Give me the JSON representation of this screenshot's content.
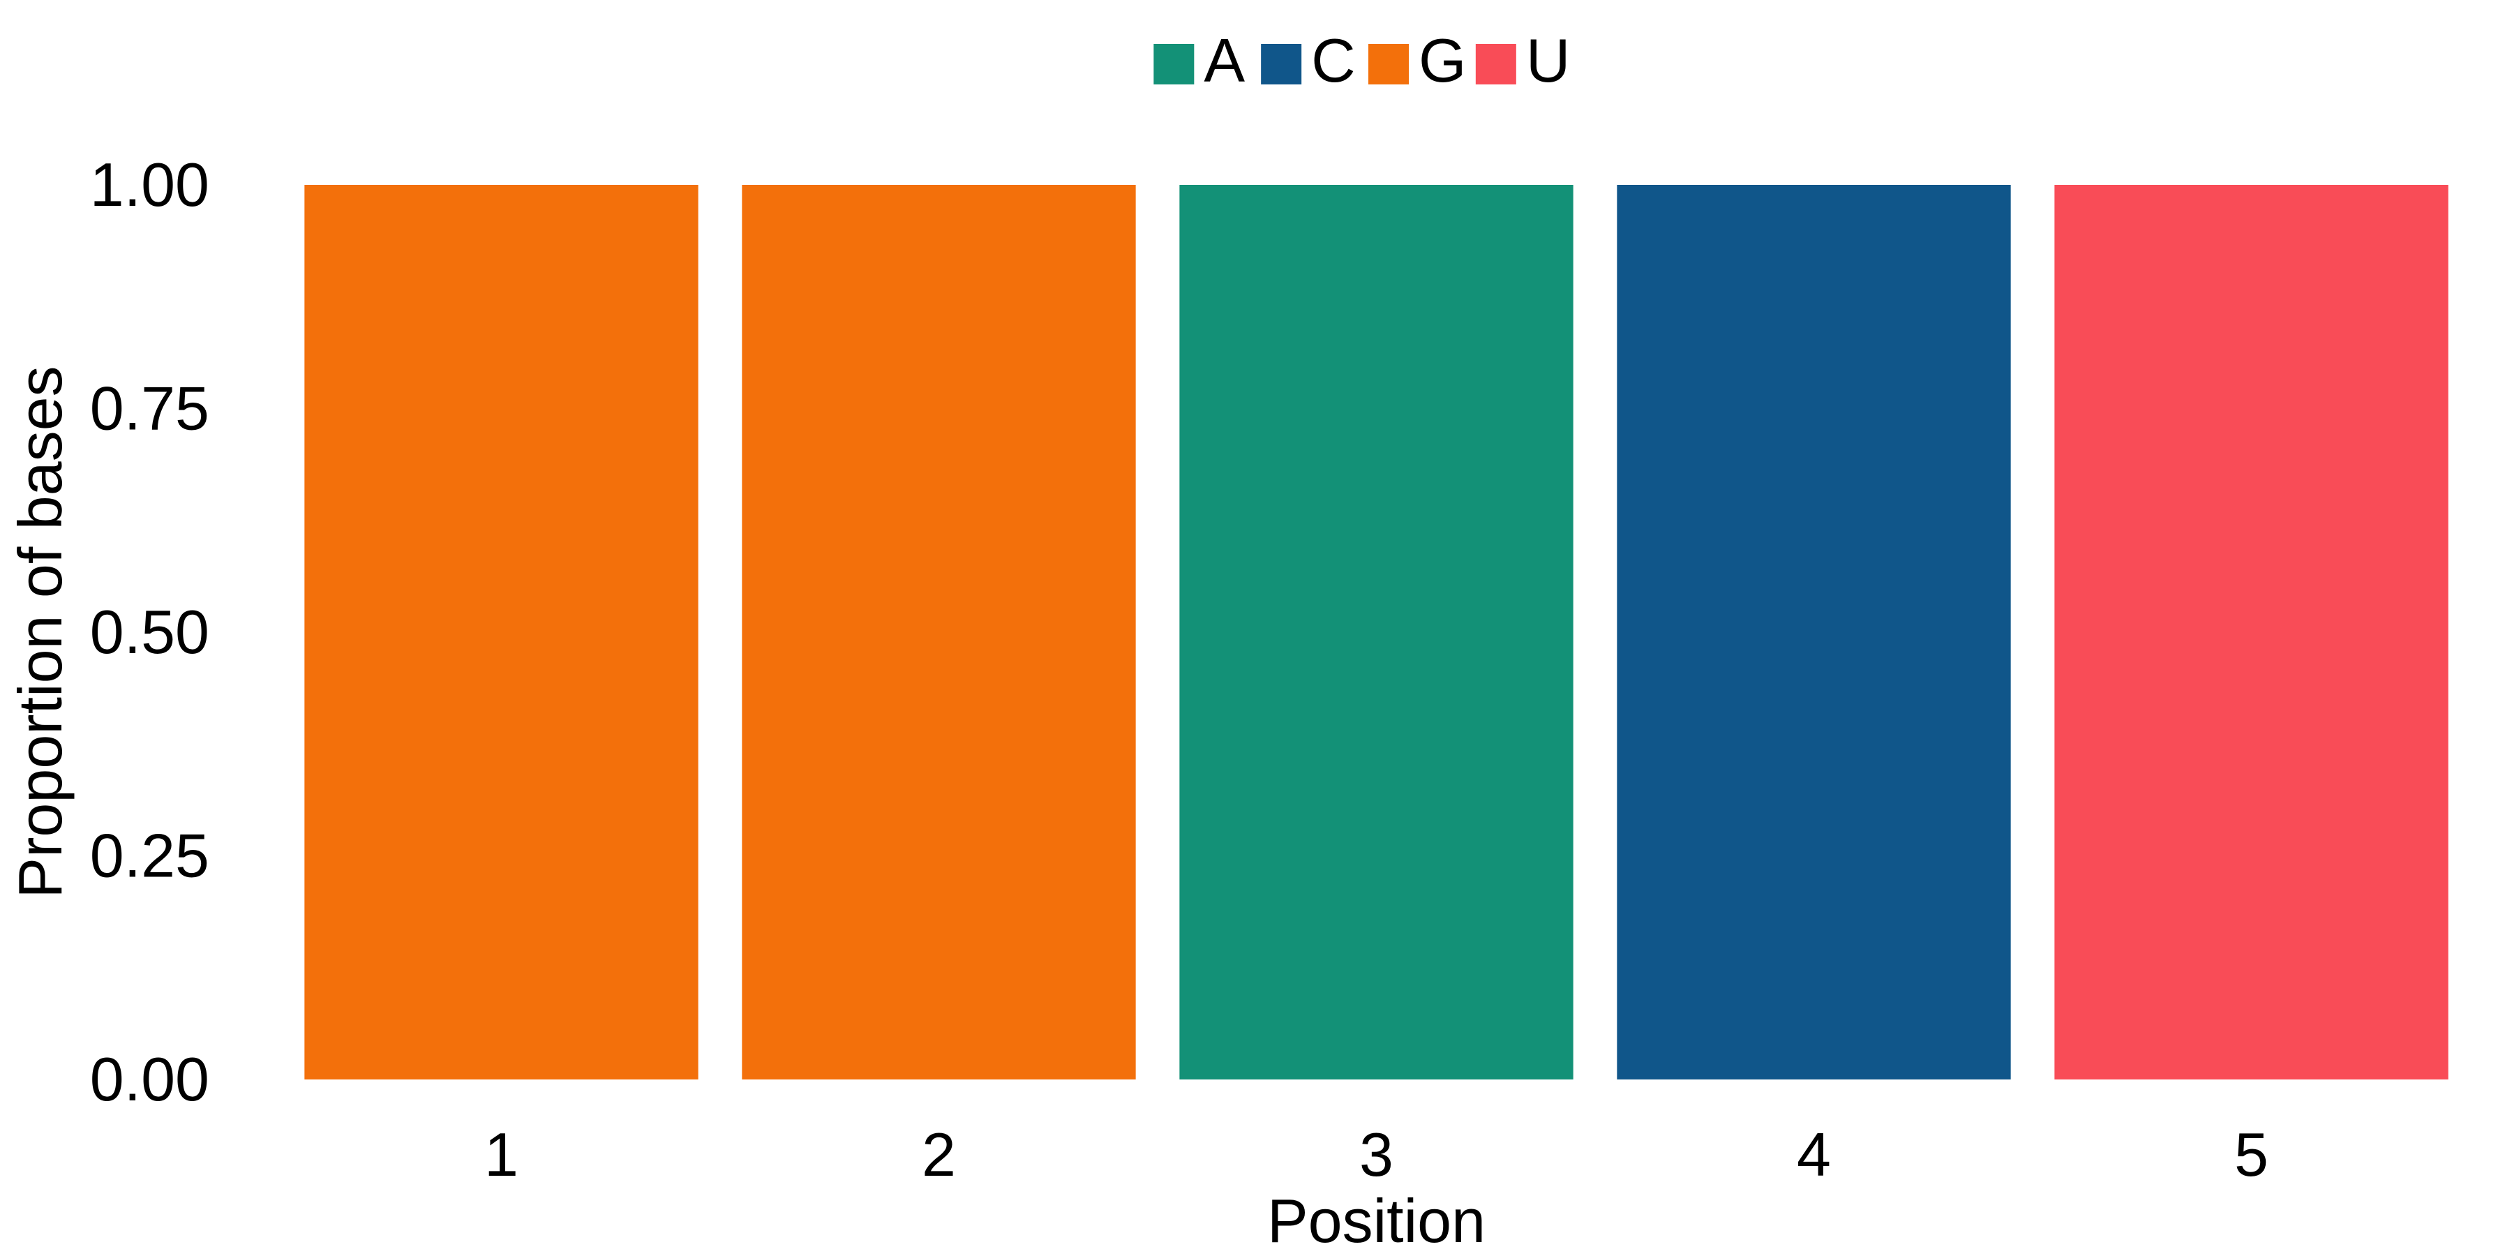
{
  "chart_data": {
    "type": "bar",
    "stacked": true,
    "xlabel": "Position",
    "ylabel": "Proportion of bases",
    "categories": [
      "1",
      "2",
      "3",
      "4",
      "5"
    ],
    "ylim": [
      0,
      1
    ],
    "yticks": [
      "0.00",
      "0.25",
      "0.50",
      "0.75",
      "1.00"
    ],
    "grid": false,
    "legend_position": "top",
    "series": [
      {
        "name": "A",
        "color": "#139177",
        "values": [
          0,
          0,
          1,
          0,
          0
        ]
      },
      {
        "name": "C",
        "color": "#10568A",
        "values": [
          0,
          0,
          0,
          1,
          0
        ]
      },
      {
        "name": "G",
        "color": "#F3700B",
        "values": [
          1,
          1,
          0,
          0,
          0
        ]
      },
      {
        "name": "U",
        "color": "#F94C57",
        "values": [
          0,
          0,
          0,
          0,
          1
        ]
      }
    ]
  }
}
